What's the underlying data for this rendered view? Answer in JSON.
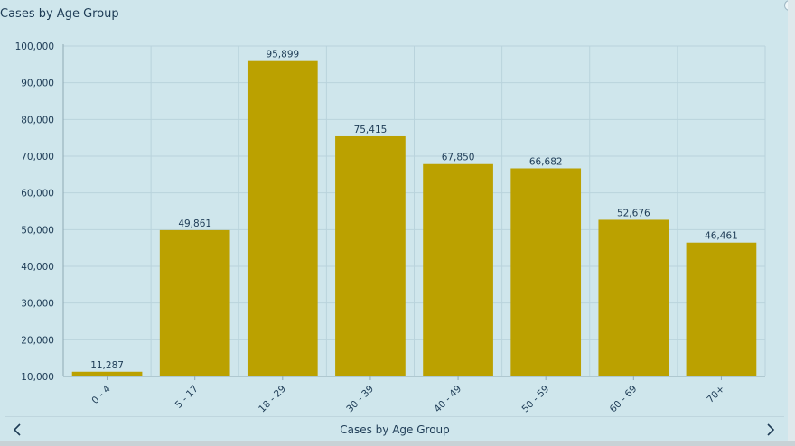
{
  "widget": {
    "title": "Cases by Age Group",
    "footer_label": "Cases by Age Group",
    "prev_icon": "chevron-left-icon",
    "next_icon": "chevron-right-icon"
  },
  "colors": {
    "bar": "#bba100",
    "background": "#cfe6ec",
    "grid": "#b9d3dc",
    "text": "#1d3b55"
  },
  "chart_data": {
    "type": "bar",
    "title": "Cases by Age Group",
    "xlabel": "",
    "ylabel": "",
    "categories": [
      "0 - 4",
      "5 - 17",
      "18 - 29",
      "30 - 39",
      "40 - 49",
      "50 - 59",
      "60 - 69",
      "70+"
    ],
    "values": [
      11287,
      49861,
      95899,
      75415,
      67850,
      66682,
      52676,
      46461
    ],
    "value_labels": [
      "11,287",
      "49,861",
      "95,899",
      "75,415",
      "67,850",
      "66,682",
      "52,676",
      "46,461"
    ],
    "yticks": [
      "10,000",
      "20,000",
      "30,000",
      "40,000",
      "50,000",
      "60,000",
      "70,000",
      "80,000",
      "90,000",
      "100,000"
    ],
    "ytick_values": [
      10000,
      20000,
      30000,
      40000,
      50000,
      60000,
      70000,
      80000,
      90000,
      100000
    ],
    "ylim": [
      10000,
      100000
    ],
    "grid": true,
    "legend": "none"
  }
}
